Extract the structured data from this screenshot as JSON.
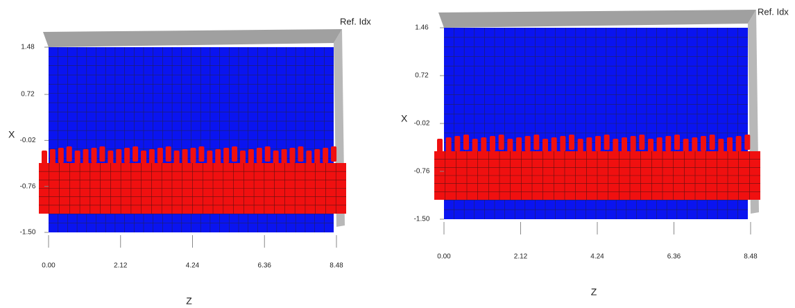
{
  "chart_data": [
    {
      "type": "surface",
      "corner_label": "Ref. Idx",
      "x_label": "Z",
      "y_label": "X",
      "surface_colors": [
        "#0a14f0",
        "#f01010"
      ],
      "xlim": [
        0,
        8.48
      ],
      "xticks": [
        {
          "value": 0,
          "label": "0.00"
        },
        2.12,
        4.24,
        6.36,
        8.48
      ],
      "ylim": [
        -1.5,
        1.48
      ],
      "yticks": [
        {
          "value": -1.5,
          "label": "-1.50"
        },
        -0.76,
        -0.02,
        0.72,
        1.48
      ]
    },
    {
      "type": "surface",
      "corner_label": "Ref. Idx",
      "x_label": "Z",
      "y_label": "X",
      "surface_colors": [
        "#0a14f0",
        "#f01010"
      ],
      "xlim": [
        0,
        8.48
      ],
      "xticks": [
        {
          "value": 0,
          "label": "0.00"
        },
        2.12,
        4.24,
        6.36,
        8.48
      ],
      "ylim": [
        -1.5,
        1.46
      ],
      "yticks": [
        {
          "value": -1.5,
          "label": "-1.50"
        },
        -0.76,
        -0.02,
        0.72,
        1.46
      ]
    }
  ]
}
